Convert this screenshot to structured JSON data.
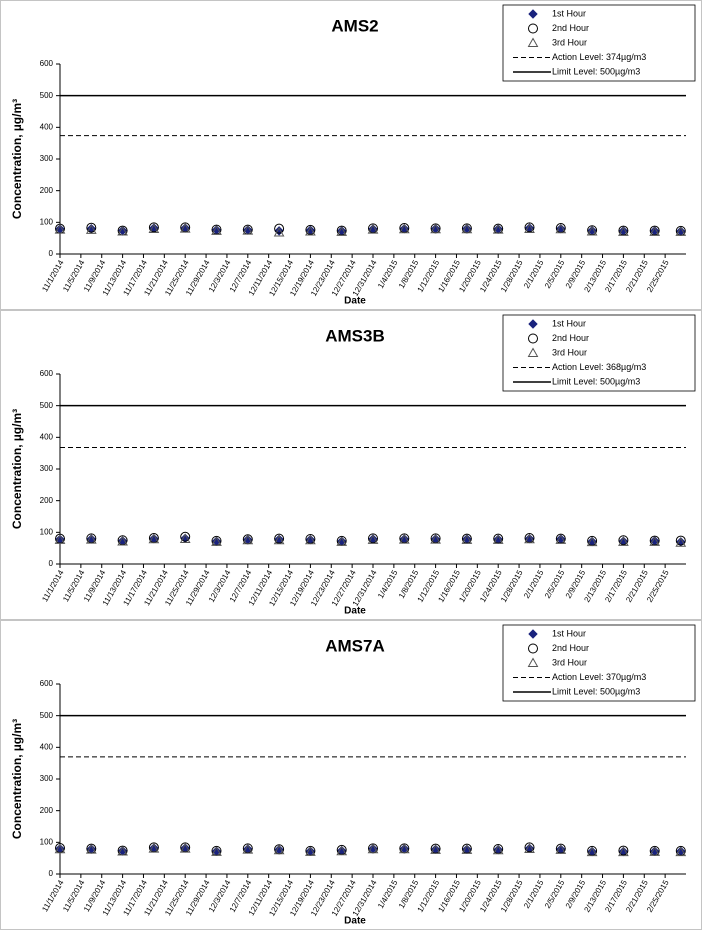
{
  "chart_data": [
    {
      "type": "scatter",
      "title": "AMS2",
      "x_label": "Date",
      "y_label": "Concentration,  µg/m³",
      "x": [
        "11/1/2014",
        "11/7/2014",
        "11/13/2014",
        "11/19/2014",
        "11/25/2014",
        "12/1/2014",
        "12/7/2014",
        "12/13/2014",
        "12/19/2014",
        "12/25/2014",
        "12/31/2014",
        "1/6/2015",
        "1/12/2015",
        "1/18/2015",
        "1/24/2015",
        "1/30/2015",
        "2/5/2015",
        "2/11/2015",
        "2/17/2015",
        "2/23/2015",
        "2/28/2015"
      ],
      "series": [
        {
          "name": "1st Hour",
          "color": "#1a237e",
          "marker": "diamond",
          "values": [
            79,
            80,
            74,
            82,
            82,
            76,
            76,
            73,
            75,
            73,
            79,
            80,
            80,
            80,
            79,
            82,
            80,
            74,
            73,
            73,
            72
          ]
        },
        {
          "name": "2nd Hour",
          "color": "#000000",
          "marker": "circle",
          "values": [
            80,
            83,
            74,
            84,
            84,
            77,
            77,
            80,
            76,
            74,
            81,
            82,
            81,
            81,
            80,
            84,
            82,
            75,
            74,
            74,
            73
          ]
        },
        {
          "name": "3rd Hour",
          "color": "#555555",
          "marker": "triangle",
          "values": [
            77,
            76,
            71,
            79,
            80,
            73,
            74,
            68,
            71,
            70,
            77,
            78,
            78,
            78,
            77,
            79,
            78,
            71,
            70,
            70,
            70
          ]
        }
      ],
      "reference_lines": [
        {
          "name": "Action Level: 374µg/m3",
          "value": 374,
          "dashed": true
        },
        {
          "name": "Limit Level: 500µg/m3",
          "value": 500,
          "dashed": false
        }
      ],
      "xlim": [
        "11/1/2014",
        "3/1/2015"
      ],
      "xticks": [
        "11/1/2014",
        "11/5/2014",
        "11/9/2014",
        "11/13/2014",
        "11/17/2014",
        "11/21/2014",
        "11/25/2014",
        "11/29/2014",
        "12/3/2014",
        "12/7/2014",
        "12/11/2014",
        "12/15/2014",
        "12/19/2014",
        "12/23/2014",
        "12/27/2014",
        "12/31/2014",
        "1/4/2015",
        "1/8/2015",
        "1/12/2015",
        "1/16/2015",
        "1/20/2015",
        "1/24/2015",
        "1/28/2015",
        "2/1/2015",
        "2/5/2015",
        "2/9/2015",
        "2/13/2015",
        "2/17/2015",
        "2/21/2015",
        "2/25/2015"
      ],
      "ylim": [
        0,
        600
      ],
      "yticks": [
        0,
        100,
        200,
        300,
        400,
        500,
        600
      ],
      "grid": false,
      "legend": "upper right"
    },
    {
      "type": "scatter",
      "title": "AMS3B",
      "x_label": "Date",
      "y_label": "Concentration,  µg/m³",
      "x": [
        "11/1/2014",
        "11/7/2014",
        "11/13/2014",
        "11/19/2014",
        "11/25/2014",
        "12/1/2014",
        "12/7/2014",
        "12/13/2014",
        "12/19/2014",
        "12/25/2014",
        "12/31/2014",
        "1/6/2015",
        "1/12/2015",
        "1/18/2015",
        "1/24/2015",
        "1/30/2015",
        "2/5/2015",
        "2/11/2015",
        "2/17/2015",
        "2/23/2015",
        "2/28/2015"
      ],
      "series": [
        {
          "name": "1st Hour",
          "color": "#1a237e",
          "marker": "diamond",
          "values": [
            78,
            79,
            73,
            80,
            81,
            72,
            77,
            78,
            77,
            72,
            79,
            79,
            79,
            79,
            78,
            80,
            79,
            71,
            72,
            73,
            70
          ]
        },
        {
          "name": "2nd Hour",
          "color": "#000000",
          "marker": "circle",
          "values": [
            80,
            81,
            75,
            82,
            86,
            73,
            78,
            80,
            79,
            73,
            81,
            81,
            81,
            80,
            80,
            82,
            80,
            73,
            75,
            74,
            74
          ]
        },
        {
          "name": "3rd Hour",
          "color": "#555555",
          "marker": "triangle",
          "values": [
            76,
            77,
            71,
            78,
            79,
            70,
            75,
            75,
            75,
            70,
            76,
            77,
            77,
            76,
            76,
            78,
            76,
            69,
            70,
            70,
            67
          ]
        }
      ],
      "reference_lines": [
        {
          "name": "Action Level: 368µg/m3",
          "value": 368,
          "dashed": true
        },
        {
          "name": "Limit Level: 500µg/m3",
          "value": 500,
          "dashed": false
        }
      ],
      "xlim": [
        "11/1/2014",
        "3/1/2015"
      ],
      "xticks": [
        "11/1/2014",
        "11/5/2014",
        "11/9/2014",
        "11/13/2014",
        "11/17/2014",
        "11/21/2014",
        "11/25/2014",
        "11/29/2014",
        "12/3/2014",
        "12/7/2014",
        "12/11/2014",
        "12/15/2014",
        "12/19/2014",
        "12/23/2014",
        "12/27/2014",
        "12/31/2014",
        "1/4/2015",
        "1/8/2015",
        "1/12/2015",
        "1/16/2015",
        "1/20/2015",
        "1/24/2015",
        "1/28/2015",
        "2/1/2015",
        "2/5/2015",
        "2/9/2015",
        "2/13/2015",
        "2/17/2015",
        "2/21/2015",
        "2/25/2015"
      ],
      "ylim": [
        0,
        600
      ],
      "yticks": [
        0,
        100,
        200,
        300,
        400,
        500,
        600
      ],
      "grid": false,
      "legend": "upper right"
    },
    {
      "type": "scatter",
      "title": "AMS7A",
      "x_label": "Date",
      "y_label": "Concentration,  µg/m³",
      "x": [
        "11/1/2014",
        "11/7/2014",
        "11/13/2014",
        "11/19/2014",
        "11/25/2014",
        "12/1/2014",
        "12/7/2014",
        "12/13/2014",
        "12/19/2014",
        "12/25/2014",
        "12/31/2014",
        "1/6/2015",
        "1/12/2015",
        "1/18/2015",
        "1/24/2015",
        "1/30/2015",
        "2/5/2015",
        "2/11/2015",
        "2/17/2015",
        "2/23/2015",
        "2/28/2015"
      ],
      "series": [
        {
          "name": "1st Hour",
          "color": "#1a237e",
          "marker": "diamond",
          "values": [
            80,
            79,
            73,
            82,
            82,
            72,
            79,
            77,
            72,
            74,
            80,
            80,
            78,
            78,
            77,
            81,
            78,
            71,
            71,
            72,
            72
          ]
        },
        {
          "name": "2nd Hour",
          "color": "#000000",
          "marker": "circle",
          "values": [
            82,
            80,
            74,
            84,
            84,
            73,
            81,
            78,
            73,
            76,
            81,
            81,
            80,
            80,
            79,
            84,
            80,
            73,
            74,
            73,
            73
          ]
        },
        {
          "name": "3rd Hour",
          "color": "#555555",
          "marker": "triangle",
          "values": [
            78,
            77,
            71,
            80,
            80,
            70,
            77,
            75,
            70,
            72,
            78,
            78,
            76,
            76,
            75,
            79,
            76,
            69,
            69,
            70,
            69
          ]
        }
      ],
      "reference_lines": [
        {
          "name": "Action Level: 370µg/m3",
          "value": 370,
          "dashed": true
        },
        {
          "name": "Limit Level: 500µg/m3",
          "value": 500,
          "dashed": false
        }
      ],
      "xlim": [
        "11/1/2014",
        "3/1/2015"
      ],
      "xticks": [
        "11/1/2014",
        "11/5/2014",
        "11/9/2014",
        "11/13/2014",
        "11/17/2014",
        "11/21/2014",
        "11/25/2014",
        "11/29/2014",
        "12/3/2014",
        "12/7/2014",
        "12/11/2014",
        "12/15/2014",
        "12/19/2014",
        "12/23/2014",
        "12/27/2014",
        "12/31/2014",
        "1/4/2015",
        "1/8/2015",
        "1/12/2015",
        "1/16/2015",
        "1/20/2015",
        "1/24/2015",
        "1/28/2015",
        "2/1/2015",
        "2/5/2015",
        "2/9/2015",
        "2/13/2015",
        "2/17/2015",
        "2/21/2015",
        "2/25/2015"
      ],
      "ylim": [
        0,
        600
      ],
      "yticks": [
        0,
        100,
        200,
        300,
        400,
        500,
        600
      ],
      "grid": false,
      "legend": "upper right"
    }
  ]
}
